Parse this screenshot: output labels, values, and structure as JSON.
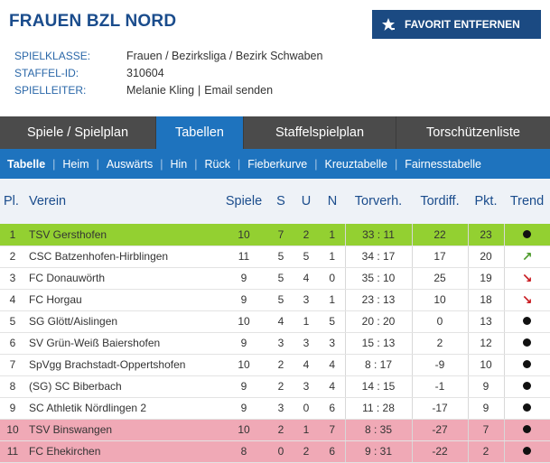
{
  "header": {
    "title": "FRAUEN BZL NORD",
    "fav_button": "FAVORIT ENTFERNEN",
    "meta": [
      {
        "key": "SPIELKLASSE:",
        "value": "Frauen / Bezirksliga / Bezirk Schwaben"
      },
      {
        "key": "STAFFEL-ID:",
        "value": "310604"
      },
      {
        "key": "SPIELLEITER:",
        "value": "Melanie Kling",
        "link": "Email senden"
      }
    ]
  },
  "tabs": [
    {
      "label": "Spiele / Spielplan",
      "active": false
    },
    {
      "label": "Tabellen",
      "active": true
    },
    {
      "label": "Staffelspielplan",
      "active": false
    },
    {
      "label": "Torschützenliste",
      "active": false
    }
  ],
  "subtabs": [
    {
      "label": "Tabelle",
      "active": true
    },
    {
      "label": "Heim",
      "active": false
    },
    {
      "label": "Auswärts",
      "active": false
    },
    {
      "label": "Hin",
      "active": false
    },
    {
      "label": "Rück",
      "active": false
    },
    {
      "label": "Fieberkurve",
      "active": false
    },
    {
      "label": "Kreuztabelle",
      "active": false
    },
    {
      "label": "Fairnesstabelle",
      "active": false
    }
  ],
  "table": {
    "headers": [
      "Pl.",
      "Verein",
      "Spiele",
      "S",
      "U",
      "N",
      "Torverh.",
      "Tordiff.",
      "Pkt.",
      "Trend"
    ],
    "rows": [
      {
        "pl": "1",
        "verein": "TSV Gersthofen",
        "spiele": "10",
        "s": "7",
        "u": "2",
        "n": "1",
        "torverh": "33 : 11",
        "tordiff": "22",
        "pkt": "23",
        "trend": "dot",
        "status": "up"
      },
      {
        "pl": "2",
        "verein": "CSC Batzenhofen-Hirblingen",
        "spiele": "11",
        "s": "5",
        "u": "5",
        "n": "1",
        "torverh": "34 : 17",
        "tordiff": "17",
        "pkt": "20",
        "trend": "up",
        "status": "normal"
      },
      {
        "pl": "3",
        "verein": "FC Donauwörth",
        "spiele": "9",
        "s": "5",
        "u": "4",
        "n": "0",
        "torverh": "35 : 10",
        "tordiff": "25",
        "pkt": "19",
        "trend": "down",
        "status": "normal"
      },
      {
        "pl": "4",
        "verein": "FC Horgau",
        "spiele": "9",
        "s": "5",
        "u": "3",
        "n": "1",
        "torverh": "23 : 13",
        "tordiff": "10",
        "pkt": "18",
        "trend": "down",
        "status": "normal"
      },
      {
        "pl": "5",
        "verein": "SG Glött/Aislingen",
        "spiele": "10",
        "s": "4",
        "u": "1",
        "n": "5",
        "torverh": "20 : 20",
        "tordiff": "0",
        "pkt": "13",
        "trend": "dot",
        "status": "normal"
      },
      {
        "pl": "6",
        "verein": "SV Grün-Weiß Baiershofen",
        "spiele": "9",
        "s": "3",
        "u": "3",
        "n": "3",
        "torverh": "15 : 13",
        "tordiff": "2",
        "pkt": "12",
        "trend": "dot",
        "status": "normal"
      },
      {
        "pl": "7",
        "verein": "SpVgg Brachstadt-Oppertshofen",
        "spiele": "10",
        "s": "2",
        "u": "4",
        "n": "4",
        "torverh": "8 : 17",
        "tordiff": "-9",
        "pkt": "10",
        "trend": "dot",
        "status": "normal"
      },
      {
        "pl": "8",
        "verein": "(SG) SC Biberbach",
        "spiele": "9",
        "s": "2",
        "u": "3",
        "n": "4",
        "torverh": "14 : 15",
        "tordiff": "-1",
        "pkt": "9",
        "trend": "dot",
        "status": "normal"
      },
      {
        "pl": "9",
        "verein": "SC Athletik Nördlingen 2",
        "spiele": "9",
        "s": "3",
        "u": "0",
        "n": "6",
        "torverh": "11 : 28",
        "tordiff": "-17",
        "pkt": "9",
        "trend": "dot",
        "status": "normal"
      },
      {
        "pl": "10",
        "verein": "TSV Binswangen",
        "spiele": "10",
        "s": "2",
        "u": "1",
        "n": "7",
        "torverh": "8 : 35",
        "tordiff": "-27",
        "pkt": "7",
        "trend": "dot",
        "status": "down"
      },
      {
        "pl": "11",
        "verein": "FC Ehekirchen",
        "spiele": "8",
        "s": "0",
        "u": "2",
        "n": "6",
        "torverh": "9 : 31",
        "tordiff": "-22",
        "pkt": "2",
        "trend": "dot",
        "status": "down"
      }
    ]
  },
  "colors": {
    "brand_blue": "#1e73be",
    "title_blue": "#1a4c8c",
    "promotion_green": "#93d031",
    "relegation_red": "#f0a9b6"
  }
}
